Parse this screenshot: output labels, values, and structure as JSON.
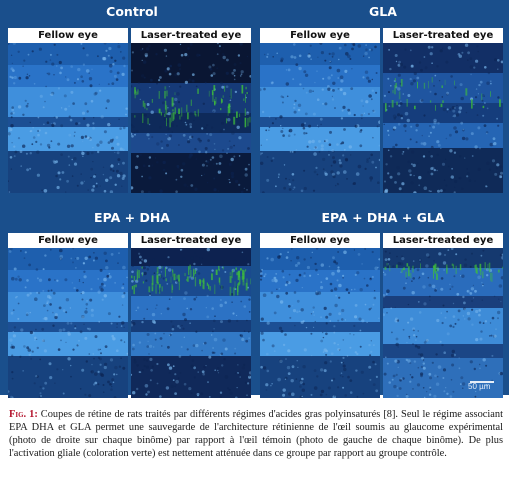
{
  "groups": [
    {
      "label": "Control",
      "panels": [
        {
          "title": "Fellow eye",
          "tissue": "fellow"
        },
        {
          "title": "Laser-treated eye",
          "tissue": "laser-control"
        }
      ]
    },
    {
      "label": "GLA",
      "panels": [
        {
          "title": "Fellow eye",
          "tissue": "fellow"
        },
        {
          "title": "Laser-treated eye",
          "tissue": "laser-gla"
        }
      ]
    },
    {
      "label": "EPA + DHA",
      "panels": [
        {
          "title": "Fellow eye",
          "tissue": "fellow"
        },
        {
          "title": "Laser-treated eye",
          "tissue": "laser-epadha"
        }
      ]
    },
    {
      "label": "EPA + DHA + GLA",
      "panels": [
        {
          "title": "Fellow eye",
          "tissue": "fellow"
        },
        {
          "title": "Laser-treated eye",
          "tissue": "laser-all"
        }
      ]
    }
  ],
  "scale_bar": {
    "label": "50 µm"
  },
  "caption": {
    "label": "Fig. 1:",
    "text": " Coupes de rétine de rats traités par différents régimes d'acides gras polyinsaturés [8]. Seul le régime associant EPA DHA et GLA permet une sauvegarde de l'architecture rétinienne de l'œil soumis au glaucome expérimental (photo de droite sur chaque binôme) par rapport à l'œil témoin (photo de gauche de chaque binôme). De plus l'activation gliale (coloration verte) est nettement atténuée dans ce groupe par rapport au groupe contrôle."
  },
  "colors": {
    "figure_background": "#1a4f8c",
    "nuclear_stain": "#4f9fe0",
    "glial_stain": "#3fbf3a",
    "caption_label": "#b3122b"
  }
}
